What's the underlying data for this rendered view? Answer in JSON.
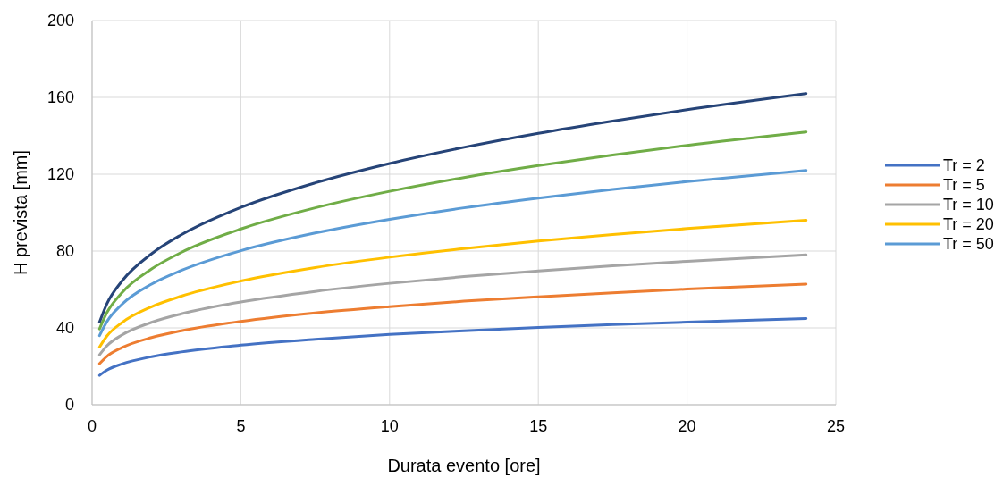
{
  "chart_data": {
    "type": "line",
    "xlabel": "Durata evento [ore]",
    "ylabel": "H prevista [mm]",
    "x": [
      0.25,
      0.5,
      1,
      2,
      3,
      5,
      7.5,
      10,
      12.5,
      15,
      17.5,
      20,
      24
    ],
    "series": [
      {
        "name": "Tr = 2",
        "color": "#4472c4",
        "values": [
          15.3,
          18.0,
          21.2,
          25.0,
          27.5,
          31.0,
          34.1,
          36.6,
          38.5,
          40.2,
          41.7,
          43.0,
          44.9
        ]
      },
      {
        "name": "Tr = 5",
        "color": "#ed7d31",
        "values": [
          21.4,
          25.2,
          29.7,
          35.0,
          38.5,
          43.4,
          47.8,
          51.1,
          53.9,
          56.2,
          58.3,
          60.2,
          62.8
        ]
      },
      {
        "name": "Tr = 10",
        "color": "#a5a5a5",
        "values": [
          26,
          30.7,
          36.3,
          42.9,
          47.3,
          53.5,
          59.0,
          63.2,
          66.7,
          69.6,
          72.3,
          74.7,
          78
        ]
      },
      {
        "name": "Tr = 20",
        "color": "#ffc000",
        "values": [
          30,
          35.8,
          42.7,
          51.0,
          56.5,
          64.4,
          71.4,
          76.8,
          81.3,
          85.2,
          88.6,
          91.7,
          96
        ]
      },
      {
        "name": "Tr = 50",
        "color": "#5b9bd5",
        "values": [
          36,
          43.3,
          52.2,
          62.8,
          69.9,
          80.2,
          89.4,
          96.5,
          102.5,
          107.6,
          112.1,
          116.2,
          122
        ]
      },
      {
        "color": "#70ad47",
        "values": [
          39.5,
          48.0,
          58.3,
          70.7,
          79.3,
          91.5,
          102.5,
          111.1,
          118.3,
          124.5,
          130.0,
          135.0,
          142
        ]
      },
      {
        "color": "#264478",
        "values": [
          43,
          52.6,
          64.3,
          78.6,
          88.5,
          102.7,
          115.5,
          125.6,
          134.0,
          141.3,
          147.7,
          153.6,
          162
        ]
      }
    ],
    "xlim": [
      0,
      25
    ],
    "xticks": [
      0,
      5,
      10,
      15,
      20,
      25
    ],
    "ylim": [
      0,
      200
    ],
    "yticks": [
      0,
      40,
      80,
      120,
      160,
      200
    ],
    "grid": true,
    "legend": "right",
    "marker": "none",
    "line_style": "solid"
  }
}
